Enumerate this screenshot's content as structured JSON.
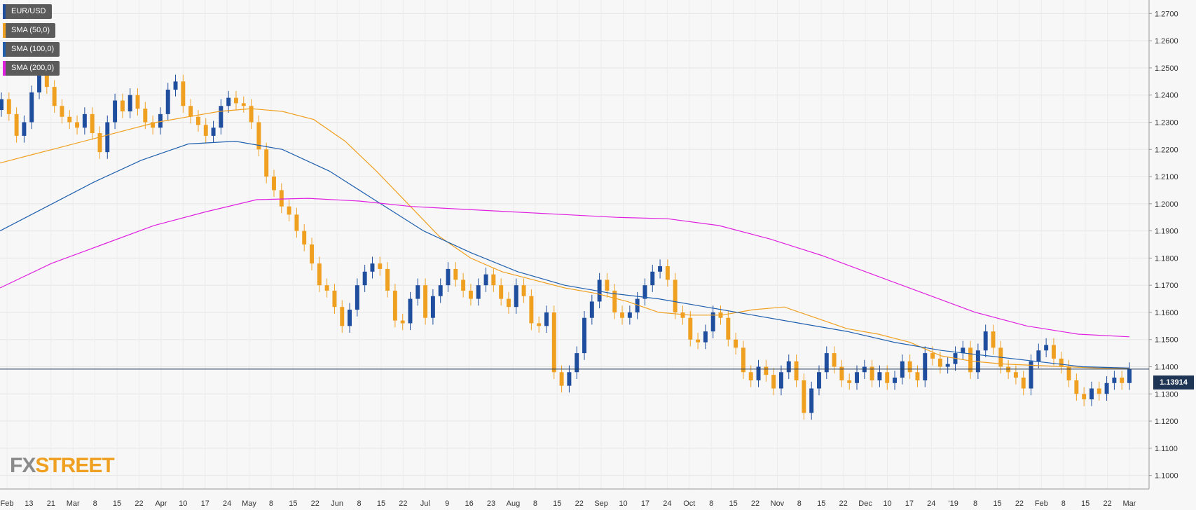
{
  "legend": [
    {
      "label": "EUR/USD",
      "color": "#1f4e9e"
    },
    {
      "label": "SMA (50,0)",
      "color": "#f0a020"
    },
    {
      "label": "SMA (100,0)",
      "color": "#1f5fae"
    },
    {
      "label": "SMA (200,0)",
      "color": "#e020e0"
    }
  ],
  "watermark": {
    "fx": "FX",
    "street": "STREET"
  },
  "current_price_label": "1.13914",
  "chart_data": {
    "type": "line",
    "instrument": "EUR/USD",
    "ylim": [
      1.095,
      1.275
    ],
    "y_ticks": [
      "1.1000",
      "1.1100",
      "1.1200",
      "1.1300",
      "1.1400",
      "1.1500",
      "1.1600",
      "1.1700",
      "1.1800",
      "1.1900",
      "1.2000",
      "1.2100",
      "1.2200",
      "1.2300",
      "1.2400",
      "1.2500",
      "1.2600",
      "1.2700"
    ],
    "x_ticks": [
      "Feb",
      "13",
      "21",
      "Mar",
      "8",
      "15",
      "22",
      "Apr",
      "10",
      "17",
      "24",
      "May",
      "8",
      "15",
      "22",
      "Jun",
      "8",
      "15",
      "22",
      "Jul",
      "9",
      "16",
      "23",
      "Aug",
      "8",
      "15",
      "22",
      "Sep",
      "10",
      "17",
      "24",
      "Oct",
      "8",
      "15",
      "22",
      "Nov",
      "8",
      "15",
      "22",
      "Dec",
      "10",
      "17",
      "24",
      "'19",
      "8",
      "15",
      "22",
      "Feb",
      "8",
      "15",
      "22",
      "Mar"
    ],
    "current_price": 1.13914,
    "grid": true,
    "legend_position": "top-left",
    "price_closes": [
      1.2385,
      1.233,
      1.225,
      1.23,
      1.241,
      1.2495,
      1.243,
      1.236,
      1.232,
      1.23,
      1.228,
      1.233,
      1.226,
      1.219,
      1.23,
      1.238,
      1.234,
      1.24,
      1.235,
      1.23,
      1.228,
      1.233,
      1.242,
      1.245,
      1.236,
      1.232,
      1.229,
      1.225,
      1.228,
      1.236,
      1.239,
      1.237,
      1.236,
      1.23,
      1.22,
      1.21,
      1.205,
      1.199,
      1.196,
      1.19,
      1.185,
      1.178,
      1.17,
      1.168,
      1.162,
      1.155,
      1.161,
      1.17,
      1.175,
      1.178,
      1.176,
      1.168,
      1.157,
      1.156,
      1.165,
      1.17,
      1.158,
      1.166,
      1.17,
      1.176,
      1.172,
      1.168,
      1.165,
      1.17,
      1.174,
      1.17,
      1.165,
      1.162,
      1.17,
      1.166,
      1.156,
      1.155,
      1.16,
      1.138,
      1.133,
      1.138,
      1.145,
      1.158,
      1.164,
      1.172,
      1.168,
      1.16,
      1.158,
      1.16,
      1.165,
      1.17,
      1.175,
      1.177,
      1.172,
      1.16,
      1.158,
      1.15,
      1.149,
      1.153,
      1.16,
      1.158,
      1.15,
      1.147,
      1.138,
      1.135,
      1.14,
      1.137,
      1.132,
      1.138,
      1.142,
      1.135,
      1.123,
      1.132,
      1.138,
      1.145,
      1.14,
      1.135,
      1.134,
      1.138,
      1.14,
      1.135,
      1.138,
      1.134,
      1.136,
      1.142,
      1.138,
      1.135,
      1.145,
      1.143,
      1.14,
      1.141,
      1.145,
      1.147,
      1.138,
      1.146,
      1.153,
      1.147,
      1.14,
      1.138,
      1.136,
      1.132,
      1.142,
      1.146,
      1.148,
      1.143,
      1.14,
      1.135,
      1.13,
      1.128,
      1.132,
      1.13,
      1.134,
      1.136,
      1.134,
      1.1391
    ],
    "sma_50": [
      1.215,
      1.218,
      1.221,
      1.224,
      1.227,
      1.23,
      1.232,
      1.234,
      1.235,
      1.234,
      1.231,
      1.223,
      1.212,
      1.2,
      1.188,
      1.18,
      1.175,
      1.172,
      1.169,
      1.167,
      1.164,
      1.16,
      1.159,
      1.159,
      1.161,
      1.162,
      1.158,
      1.154,
      1.152,
      1.149,
      1.144,
      1.142,
      1.141,
      1.1405,
      1.14,
      1.1395,
      1.1393
    ],
    "sma_100": [
      1.19,
      1.199,
      1.208,
      1.216,
      1.222,
      1.223,
      1.22,
      1.212,
      1.201,
      1.19,
      1.182,
      1.175,
      1.17,
      1.167,
      1.165,
      1.162,
      1.159,
      1.156,
      1.153,
      1.149,
      1.146,
      1.144,
      1.142,
      1.14,
      1.1395
    ],
    "sma_200": [
      1.169,
      1.178,
      1.185,
      1.192,
      1.197,
      1.2015,
      1.202,
      1.201,
      1.199,
      1.198,
      1.197,
      1.196,
      1.195,
      1.1945,
      1.192,
      1.187,
      1.181,
      1.174,
      1.167,
      1.16,
      1.155,
      1.152,
      1.151
    ]
  }
}
